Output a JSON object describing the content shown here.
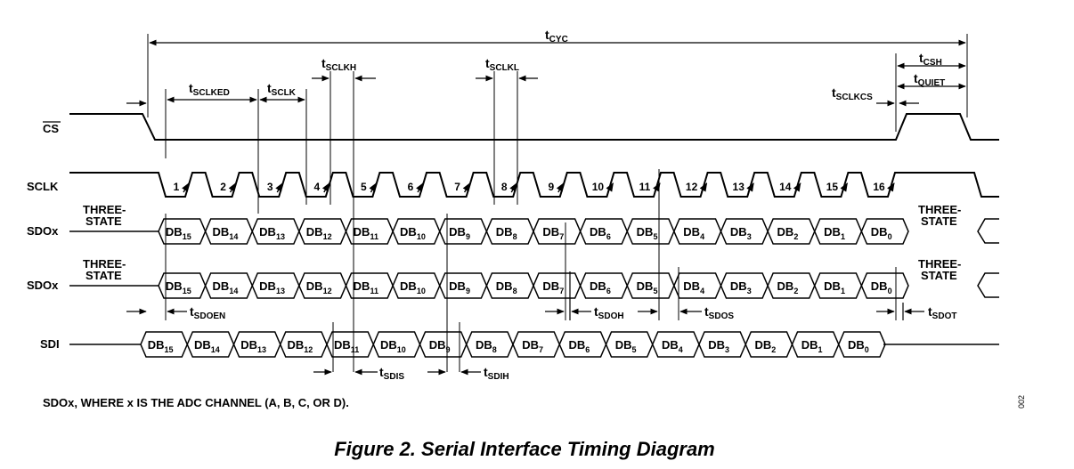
{
  "signals": {
    "cs": "CS",
    "sclk": "SCLK",
    "sdox_1": "SDOx",
    "sdox_2": "SDOx",
    "sdi": "SDI"
  },
  "three_state": {
    "line1": "THREE-",
    "line2": "STATE"
  },
  "sclk_cycles": [
    "1",
    "2",
    "3",
    "4",
    "5",
    "6",
    "7",
    "8",
    "9",
    "10",
    "11",
    "12",
    "13",
    "14",
    "15",
    "16"
  ],
  "data_bits": [
    "15",
    "14",
    "13",
    "12",
    "11",
    "10",
    "9",
    "8",
    "7",
    "6",
    "5",
    "4",
    "3",
    "2",
    "1",
    "0"
  ],
  "data_prefix": "DB",
  "timing": {
    "tcyc": {
      "main": "t",
      "sub": "CYC"
    },
    "tcsh": {
      "main": "t",
      "sub": "CSH"
    },
    "tquiet": {
      "main": "t",
      "sub": "QUIET"
    },
    "tsclked": {
      "main": "t",
      "sub": "SCLKED"
    },
    "tsclk": {
      "main": "t",
      "sub": "SCLK"
    },
    "tsclkh": {
      "main": "t",
      "sub": "SCLKH"
    },
    "tsclkl": {
      "main": "t",
      "sub": "SCLKL"
    },
    "tsclkcs": {
      "main": "t",
      "sub": "SCLKCS"
    },
    "tsdoen": {
      "main": "t",
      "sub": "SDOEN"
    },
    "tsdoh": {
      "main": "t",
      "sub": "SDOH"
    },
    "tsdos": {
      "main": "t",
      "sub": "SDOS"
    },
    "tsdot": {
      "main": "t",
      "sub": "SDOT"
    },
    "tsdis": {
      "main": "t",
      "sub": "SDIS"
    },
    "tsdih": {
      "main": "t",
      "sub": "SDIH"
    }
  },
  "note": "SDOx, WHERE x IS THE ADC CHANNEL (A, B, C, OR D).",
  "figure_code": "002",
  "caption": "Figure 2. Serial Interface Timing Diagram"
}
